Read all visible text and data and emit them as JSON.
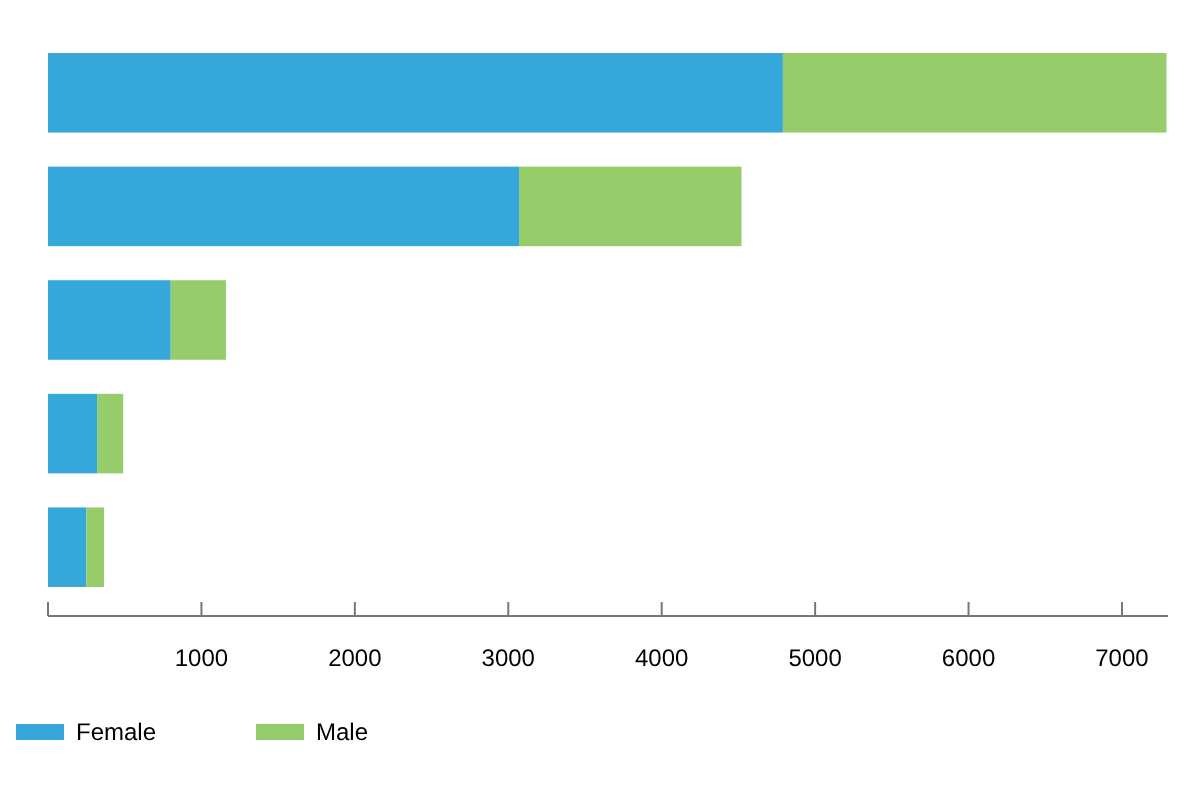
{
  "chart_data": {
    "type": "bar",
    "orientation": "horizontal",
    "stacked": true,
    "categories": [
      null,
      null,
      null,
      null,
      null
    ],
    "series": [
      {
        "name": "Female",
        "color": "#36a7da",
        "values": [
          4790,
          3070,
          800,
          320,
          250
        ]
      },
      {
        "name": "Male",
        "color": "#96cd6a",
        "values": [
          2500,
          1450,
          360,
          170,
          115
        ]
      }
    ],
    "xlim": [
      0,
      7300
    ],
    "xticks": [
      {
        "value": 0,
        "label": null
      },
      1000,
      2000,
      3000,
      4000,
      5000,
      6000,
      7000
    ],
    "legend": "bottom left",
    "grid": false
  }
}
